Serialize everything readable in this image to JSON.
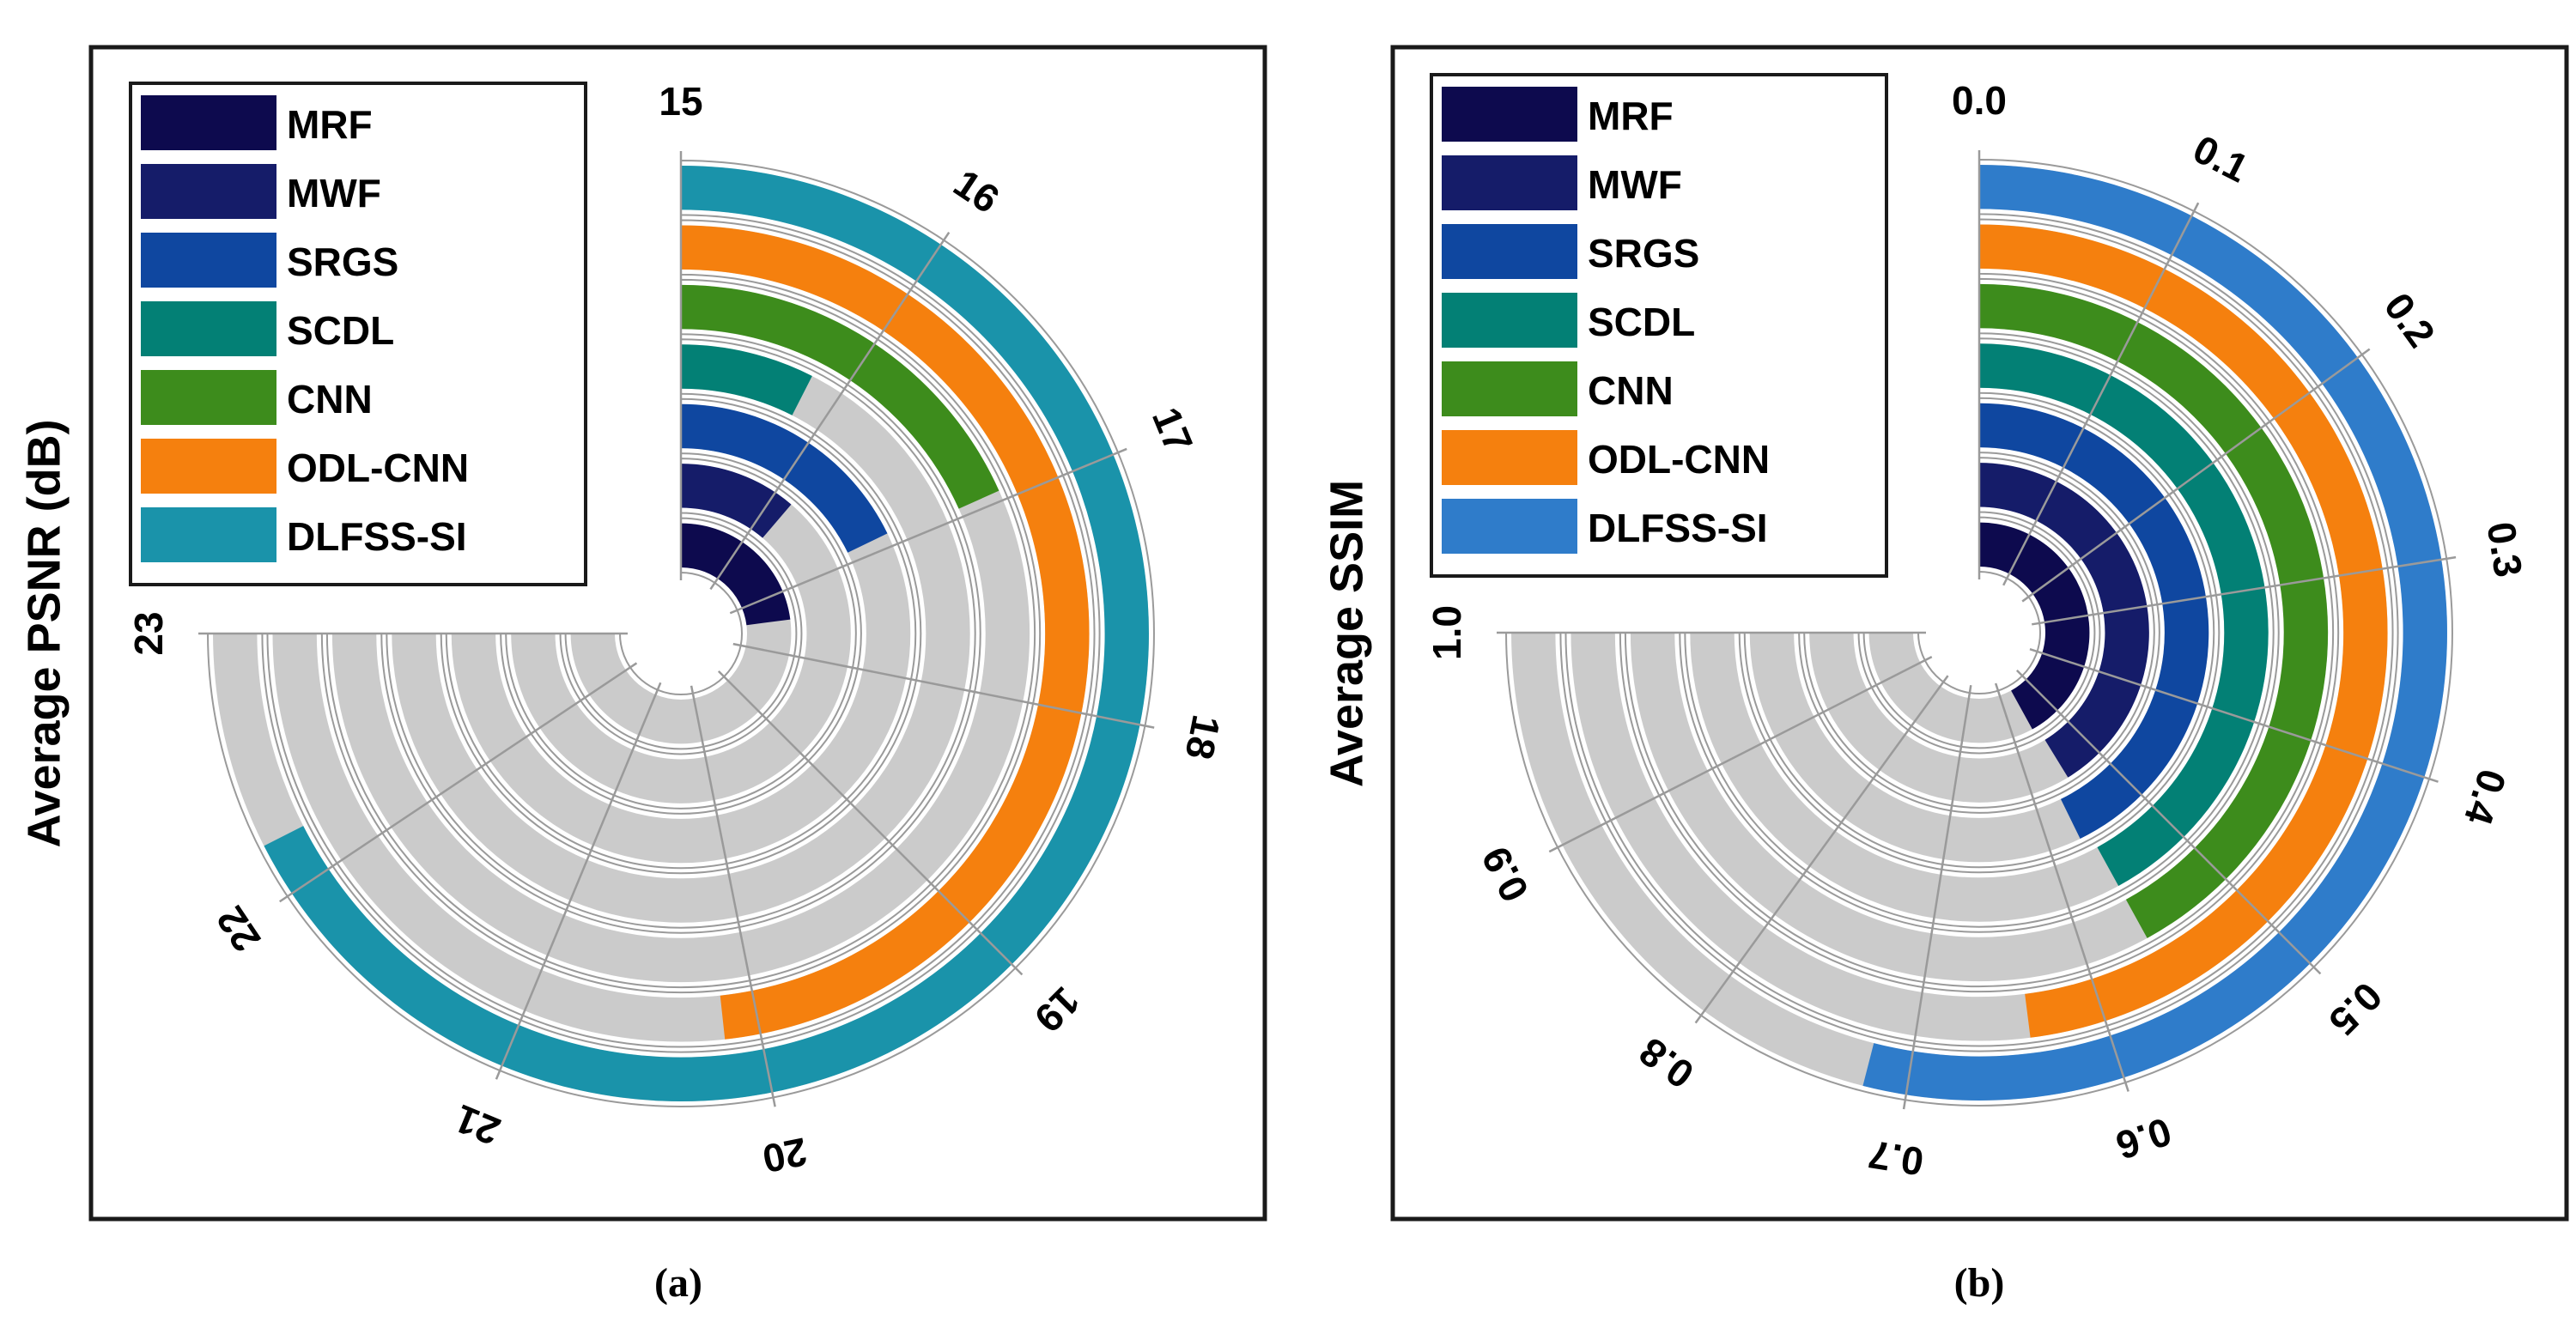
{
  "colors": {
    "MRF": "#0d0a4e",
    "MWF": "#151c69",
    "SRGS": "#0f47a0",
    "SCDL": "#038075",
    "CNN": "#3d8c1c",
    "ODL-CNN": "#f5800e",
    "DLFSS-SI_a": "#1a93aa",
    "DLFSS-SI_b": "#2f7cca",
    "track": "#cbcbcb",
    "grid": "#9a9a9a"
  },
  "chart_data": [
    {
      "type": "radial-bar",
      "panel": "(a)",
      "caption": "(a)",
      "ylabel": "Average PSNR (dB)",
      "axis_range": [
        15,
        23
      ],
      "ticks": [
        "15",
        "16",
        "17",
        "18",
        "19",
        "20",
        "21",
        "22",
        "23"
      ],
      "legend_position": "top-left",
      "grid": true,
      "series": [
        {
          "name": "MRF",
          "value": 17.45
        },
        {
          "name": "MWF",
          "value": 16.2
        },
        {
          "name": "SRGS",
          "value": 16.9
        },
        {
          "name": "SCDL",
          "value": 15.8
        },
        {
          "name": "CNN",
          "value": 16.95
        },
        {
          "name": "ODL-CNN",
          "value": 20.15
        },
        {
          "name": "DLFSS-SI",
          "value": 22.2
        }
      ]
    },
    {
      "type": "radial-bar",
      "panel": "(b)",
      "caption": "(b)",
      "ylabel": "Average SSIM",
      "axis_range": [
        0.0,
        1.0
      ],
      "ticks": [
        "0.0",
        "0.1",
        "0.2",
        "0.3",
        "0.4",
        "0.5",
        "0.6",
        "0.7",
        "0.8",
        "0.9",
        "1.0"
      ],
      "legend_position": "top-left",
      "grid": true,
      "series": [
        {
          "name": "MRF",
          "value": 0.56
        },
        {
          "name": "MWF",
          "value": 0.55
        },
        {
          "name": "SRGS",
          "value": 0.57
        },
        {
          "name": "SCDL",
          "value": 0.56
        },
        {
          "name": "CNN",
          "value": 0.56
        },
        {
          "name": "ODL-CNN",
          "value": 0.64
        },
        {
          "name": "DLFSS-SI",
          "value": 0.72
        }
      ]
    }
  ]
}
